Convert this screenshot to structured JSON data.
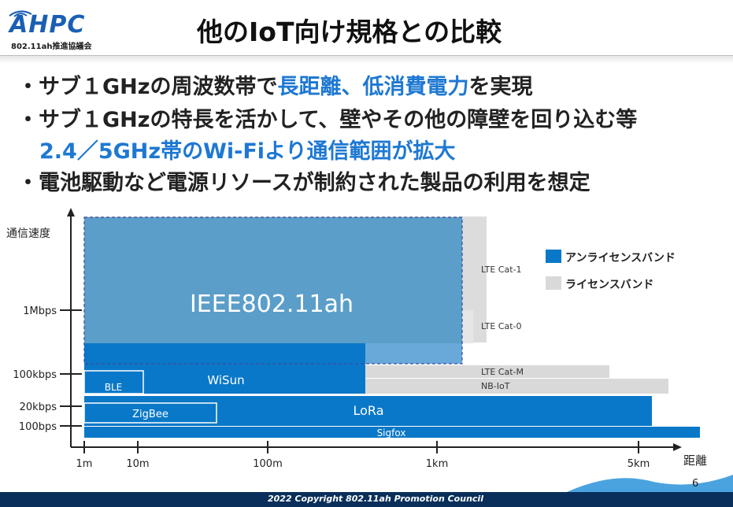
{
  "header": {
    "logo_text": "AHPC",
    "logo_sub": "802.11ah推進協議会",
    "title": "他のIoT向け規格との比較"
  },
  "bullets": [
    {
      "prefix": "・サブ１GHzの周波数帯で",
      "highlight": "長距離、低消費電力",
      "suffix": "を実現"
    },
    {
      "prefix": "・サブ１GHzの特長を活かして、壁やその他の障壁を回り込む等",
      "highlight": "",
      "suffix": ""
    },
    {
      "prefix": "",
      "highlight": "2.4／5GHz帯のWi-Fiより通信範囲が拡大",
      "suffix": ""
    },
    {
      "prefix": "・電池駆動など電源リソースが制約された製品の利用を想定",
      "highlight": "",
      "suffix": ""
    }
  ],
  "chart_data": {
    "type": "bar",
    "xlabel": "距離",
    "ylabel": "通信速度",
    "x_ticks": [
      "1m",
      "10m",
      "100m",
      "1km",
      "5km"
    ],
    "y_ticks": [
      "100bps",
      "20kbps",
      "100kbps",
      "1Mbps"
    ],
    "legend": [
      {
        "name": "アンライセンスバンド",
        "color": "#0a78c8"
      },
      {
        "name": "ライセンスバンド",
        "color": "#d9d9d9"
      }
    ],
    "standards": [
      {
        "name": "IEEE802.11ah",
        "band": "unlicensed",
        "range_max": "1km"
      },
      {
        "name": "WiSun",
        "band": "unlicensed",
        "speed_max": "100kbps"
      },
      {
        "name": "BLE",
        "band": "unlicensed",
        "range_max": "10m"
      },
      {
        "name": "ZigBee",
        "band": "unlicensed",
        "speed_max": "20kbps"
      },
      {
        "name": "LoRa",
        "band": "unlicensed",
        "range_max": "5km",
        "speed_max": "20kbps"
      },
      {
        "name": "Sigfox",
        "band": "unlicensed",
        "speed_max": "100bps"
      },
      {
        "name": "LTE Cat-1",
        "band": "licensed"
      },
      {
        "name": "LTE Cat-0",
        "band": "licensed",
        "speed_max": "1Mbps"
      },
      {
        "name": "LTE Cat-M",
        "band": "licensed"
      },
      {
        "name": "NB-IoT",
        "band": "licensed"
      }
    ]
  },
  "footer": {
    "copyright": "2022 Copyright 802.11ah Promotion Council",
    "page": "6"
  }
}
